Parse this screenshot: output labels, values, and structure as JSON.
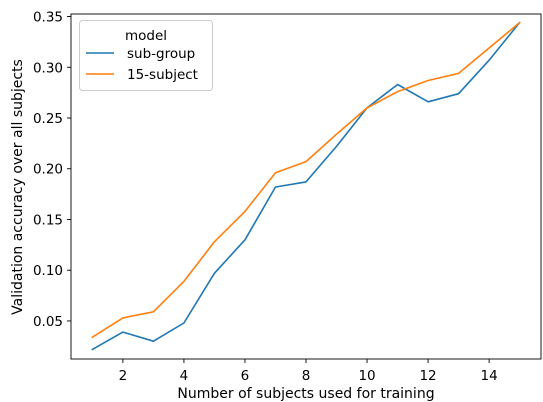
{
  "chart_data": {
    "type": "line",
    "xlabel": "Number of subjects used for training",
    "ylabel": "Validation accuracy over all subjects",
    "xlim": [
      0.3,
      15.7
    ],
    "ylim": [
      0.0125,
      0.3525
    ],
    "xticks": [
      2,
      4,
      6,
      8,
      10,
      12,
      14
    ],
    "yticks": [
      0.05,
      0.1,
      0.15,
      0.2,
      0.25,
      0.3,
      0.35
    ],
    "xtick_labels": [
      "2",
      "4",
      "6",
      "8",
      "10",
      "12",
      "14"
    ],
    "ytick_labels": [
      "0.05",
      "0.10",
      "0.15",
      "0.20",
      "0.25",
      "0.30",
      "0.35"
    ],
    "x": [
      1,
      2,
      3,
      4,
      5,
      6,
      7,
      8,
      9,
      10,
      11,
      12,
      13,
      14,
      15
    ],
    "legend": {
      "title": "model",
      "placement": "upper-left"
    },
    "grid": false,
    "series": [
      {
        "name": "sub-group",
        "color": "#1f77b4",
        "values": [
          0.022,
          0.039,
          0.03,
          0.048,
          0.097,
          0.13,
          0.182,
          0.187,
          0.222,
          0.26,
          0.283,
          0.266,
          0.274,
          0.307,
          0.344
        ]
      },
      {
        "name": "15-subject",
        "color": "#ff7f0e",
        "values": [
          0.034,
          0.053,
          0.059,
          0.089,
          0.128,
          0.158,
          0.196,
          0.207,
          0.234,
          0.26,
          0.276,
          0.287,
          0.294,
          0.319,
          0.344
        ]
      }
    ]
  }
}
